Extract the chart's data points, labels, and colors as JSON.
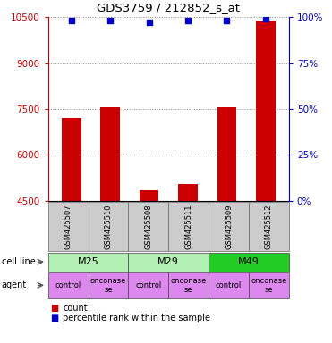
{
  "title": "GDS3759 / 212852_s_at",
  "samples": [
    "GSM425507",
    "GSM425510",
    "GSM425508",
    "GSM425511",
    "GSM425509",
    "GSM425512"
  ],
  "counts": [
    7200,
    7550,
    4850,
    5050,
    7550,
    10400
  ],
  "percentile_ranks": [
    98,
    98,
    97,
    98,
    98,
    99
  ],
  "ylim_left": [
    4500,
    10500
  ],
  "ylim_right": [
    0,
    100
  ],
  "yticks_left": [
    4500,
    6000,
    7500,
    9000,
    10500
  ],
  "yticks_right": [
    0,
    25,
    50,
    75,
    100
  ],
  "cell_lines": [
    {
      "label": "M25",
      "cols": [
        0,
        1
      ],
      "color": "#b3f0b3"
    },
    {
      "label": "M29",
      "cols": [
        2,
        3
      ],
      "color": "#b3f0b3"
    },
    {
      "label": "M49",
      "cols": [
        4,
        5
      ],
      "color": "#22cc22"
    }
  ],
  "agents": [
    "control",
    "onconase",
    "control",
    "onconase",
    "control",
    "onconase"
  ],
  "bar_color": "#cc0000",
  "dot_color": "#0000cc",
  "bar_bottom": 4500,
  "left_axis_color": "#cc0000",
  "right_axis_color": "#0000cc",
  "grid_color": "#888888",
  "background_color": "#ffffff",
  "sample_box_color": "#cccccc",
  "agent_color": "#dd88ee",
  "legend_count_color": "#cc0000",
  "legend_pct_color": "#0000cc"
}
